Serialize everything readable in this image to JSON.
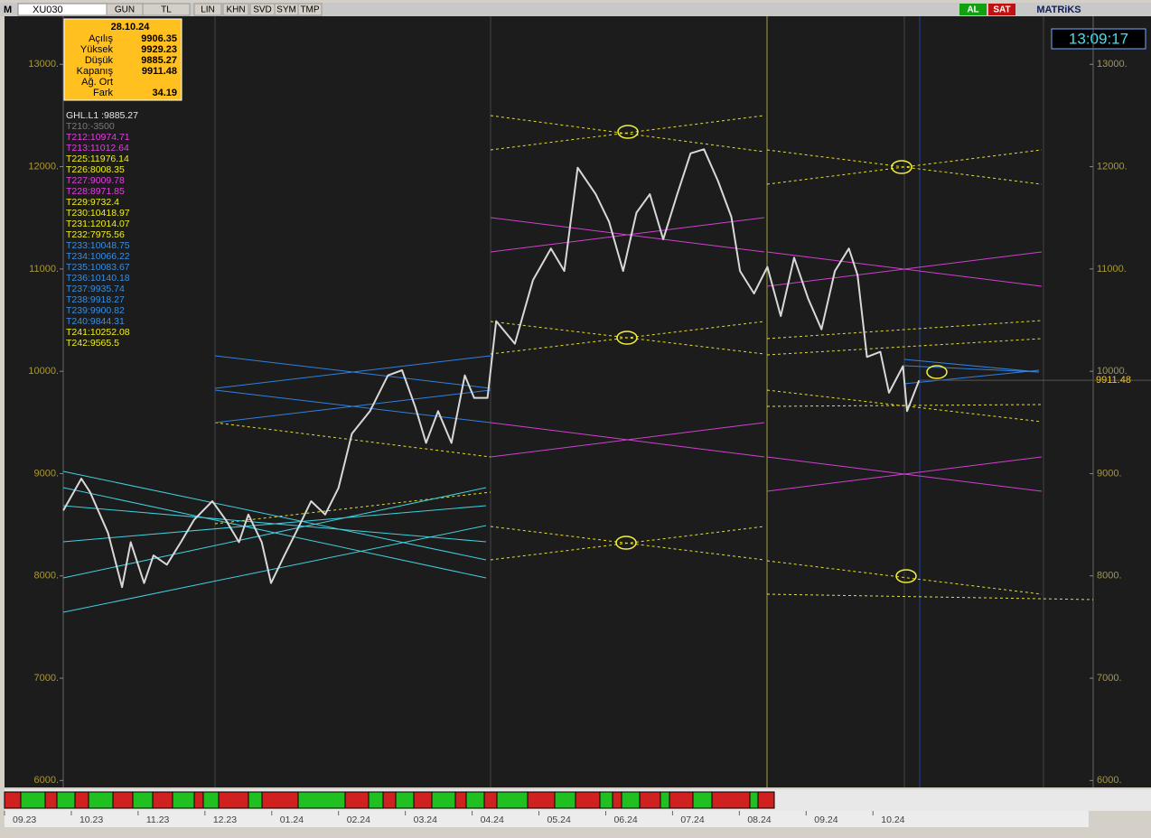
{
  "toolbar": {
    "logo": "M",
    "symbol": "XU030",
    "buttons": [
      "GUN",
      "TL",
      "LIN",
      "KHN",
      "SVD",
      "SYM",
      "TMP"
    ],
    "buy": "AL",
    "sell": "SAT",
    "brand": "MATRiKS"
  },
  "clock": "13:09:17",
  "info_box": {
    "date": "28.10.24",
    "rows": [
      {
        "label": "Açılış",
        "value": "9906.35"
      },
      {
        "label": "Yüksek",
        "value": "9929.23"
      },
      {
        "label": "Düşük",
        "value": "9885.27"
      },
      {
        "label": "Kapanış",
        "value": "9911.48"
      },
      {
        "label": "Ağ. Ort",
        "value": ""
      },
      {
        "label": "Fark",
        "value": "34.19"
      }
    ]
  },
  "indicators": [
    {
      "text": "GHL.L1      :9885.27",
      "color": "#e8e8e8"
    },
    {
      "text": "T210:-3500",
      "color": "#7a7a7a"
    },
    {
      "text": "T212:10974.71",
      "color": "#e040e0"
    },
    {
      "text": "T213:11012.64",
      "color": "#e040e0"
    },
    {
      "text": "T225:11976.14",
      "color": "#f0f020"
    },
    {
      "text": "T226:8008.35",
      "color": "#f0f020"
    },
    {
      "text": "T227:9009.78",
      "color": "#e040e0"
    },
    {
      "text": "T228:8971.85",
      "color": "#e040e0"
    },
    {
      "text": "T229:9732.4",
      "color": "#f0f020"
    },
    {
      "text": "T230:10418.97",
      "color": "#f0f020"
    },
    {
      "text": "T231:12014.07",
      "color": "#f0f020"
    },
    {
      "text": "T232:7975.56",
      "color": "#f0f020"
    },
    {
      "text": "T233:10048.75",
      "color": "#3a8ee0"
    },
    {
      "text": "T234:10066.22",
      "color": "#3a8ee0"
    },
    {
      "text": "T235:10083.67",
      "color": "#3a8ee0"
    },
    {
      "text": "T236:10140.18",
      "color": "#3a8ee0"
    },
    {
      "text": "T237:9935.74",
      "color": "#3a8ee0"
    },
    {
      "text": "T238:9918.27",
      "color": "#3a8ee0"
    },
    {
      "text": "T239:9900.82",
      "color": "#3a8ee0"
    },
    {
      "text": "T240:9844.31",
      "color": "#3a8ee0"
    },
    {
      "text": "T241:10252.08",
      "color": "#f0f020"
    },
    {
      "text": "T242:9565.5",
      "color": "#f0f020"
    }
  ],
  "chart_data": {
    "type": "line",
    "color": "#d8d8d8",
    "grid": false,
    "x": [
      0.88,
      1.15,
      1.28,
      1.55,
      1.76,
      1.89,
      2.09,
      2.23,
      2.43,
      2.64,
      2.84,
      3.11,
      3.31,
      3.51,
      3.65,
      3.85,
      3.99,
      4.19,
      4.39,
      4.59,
      4.8,
      5.0,
      5.2,
      5.47,
      5.74,
      5.95,
      6.15,
      6.31,
      6.49,
      6.69,
      6.89,
      7.03,
      7.23,
      7.36,
      7.64,
      7.91,
      8.18,
      8.38,
      8.58,
      8.85,
      9.05,
      9.26,
      9.46,
      9.66,
      9.86,
      10.07,
      10.27,
      10.47,
      10.68,
      10.88,
      11.01,
      11.22,
      11.42,
      11.62,
      11.82,
      12.03,
      12.23,
      12.43,
      12.64,
      12.77,
      12.91,
      13.11,
      13.24,
      13.45,
      13.51,
      13.69
    ],
    "values": [
      8640,
      8950,
      8820,
      8420,
      7890,
      8330,
      7930,
      8200,
      8110,
      8330,
      8550,
      8730,
      8550,
      8330,
      8600,
      8330,
      7930,
      8200,
      8460,
      8730,
      8600,
      8860,
      9390,
      9610,
      9960,
      10010,
      9650,
      9300,
      9610,
      9300,
      9960,
      9740,
      9740,
      10490,
      10270,
      10890,
      11200,
      10980,
      11990,
      11730,
      11460,
      10980,
      11550,
      11730,
      11290,
      11730,
      12130,
      12170,
      11860,
      11510,
      10980,
      10760,
      11020,
      10540,
      11110,
      10710,
      10410,
      10980,
      11200,
      10940,
      10140,
      10190,
      9790,
      10050,
      9610,
      9911.48
    ],
    "xlim": [
      0,
      13.7
    ],
    "xticks": [
      {
        "value": 0,
        "label": "09.23"
      },
      {
        "value": 1,
        "label": "10.23"
      },
      {
        "value": 2,
        "label": "11.23"
      },
      {
        "value": 3,
        "label": "12.23"
      },
      {
        "value": 4,
        "label": "01.24"
      },
      {
        "value": 5,
        "label": "02.24"
      },
      {
        "value": 6,
        "label": "03.24"
      },
      {
        "value": 7,
        "label": "04.24"
      },
      {
        "value": 8,
        "label": "05.24"
      },
      {
        "value": 9,
        "label": "06.24"
      },
      {
        "value": 10,
        "label": "07.24"
      },
      {
        "value": 11,
        "label": "08.24"
      },
      {
        "value": 12,
        "label": "09.24"
      },
      {
        "value": 13,
        "label": "10.24"
      }
    ],
    "ylim": [
      5950,
      13470
    ],
    "yticks": [
      {
        "value": 6000,
        "label": "6000."
      },
      {
        "value": 7000,
        "label": "7000."
      },
      {
        "value": 8000,
        "label": "8000."
      },
      {
        "value": 9000,
        "label": "9000."
      },
      {
        "value": 10000,
        "label": "10000."
      },
      {
        "value": 11000,
        "label": "11000."
      },
      {
        "value": 12000,
        "label": "12000."
      },
      {
        "value": 13000,
        "label": "13000."
      }
    ],
    "last_value": 9911.48
  }
}
